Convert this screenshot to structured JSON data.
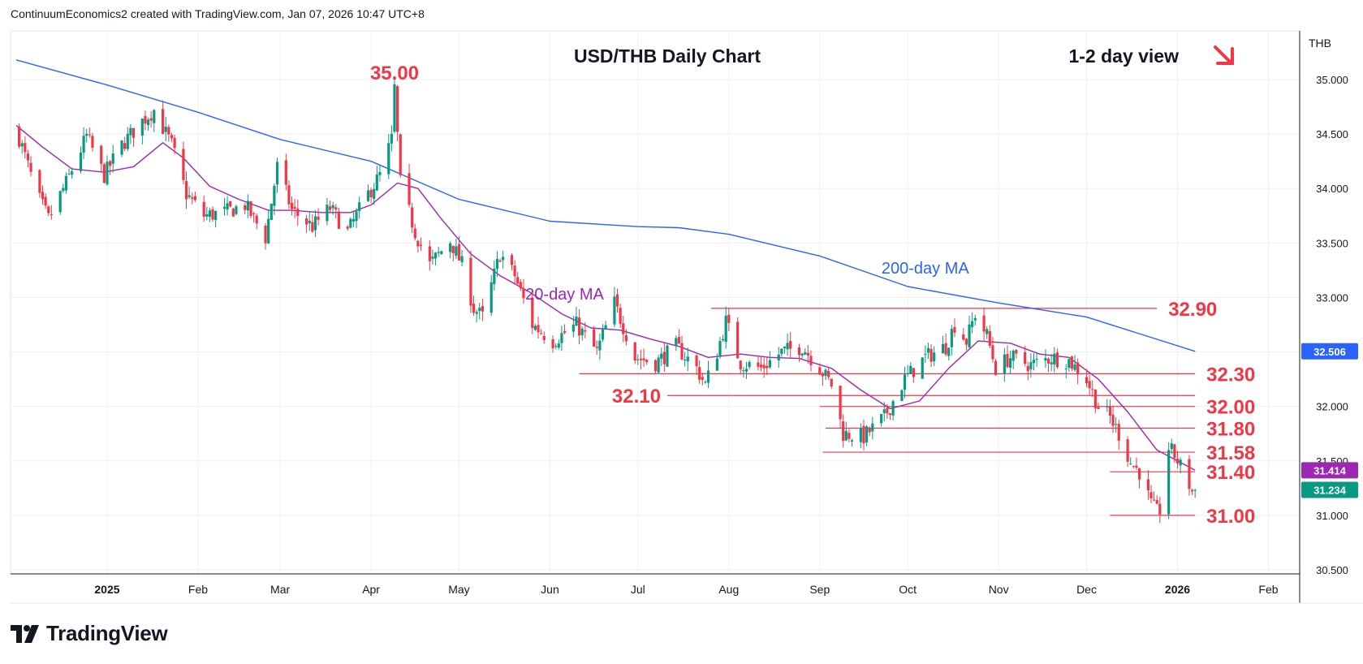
{
  "header": {
    "credit": "ContinuumEconomics2 created with TradingView.com, Jan 07, 2026 10:47 UTC+8"
  },
  "footer": {
    "brand": "TradingView"
  },
  "colors": {
    "up": "#089981",
    "down": "#f23645",
    "ma200": "#2962ff",
    "ma20": "#9c27b0",
    "level_line": "#f23645",
    "level_text": "#f23645",
    "price_badge": "#089981",
    "ma20_badge": "#9c27b0",
    "ma200_badge": "#2962ff",
    "grid": "#eef0f3"
  },
  "chart_data": {
    "type": "candlestick",
    "title": "USD/THB Daily Chart",
    "view_label": "1-2 day view",
    "view_arrow": "down-right-arrow",
    "currency": "THB",
    "ylim": [
      30.5,
      35.5
    ],
    "y_ticks": [
      "35.000",
      "34.500",
      "34.000",
      "33.500",
      "33.000",
      "32.500",
      "32.000",
      "31.500",
      "31.000",
      "30.500"
    ],
    "y_tick_values": [
      35.0,
      34.5,
      34.0,
      33.5,
      33.0,
      32.5,
      32.0,
      31.5,
      31.0,
      30.5
    ],
    "x_range": [
      "2024-12-01",
      "2026-02-10"
    ],
    "x_ticks": [
      {
        "label": "2025",
        "date": "2025-01-01",
        "bold": true
      },
      {
        "label": "Feb",
        "date": "2025-02-01"
      },
      {
        "label": "Mar",
        "date": "2025-03-01"
      },
      {
        "label": "Apr",
        "date": "2025-04-01"
      },
      {
        "label": "May",
        "date": "2025-05-01"
      },
      {
        "label": "Jun",
        "date": "2025-06-01"
      },
      {
        "label": "Jul",
        "date": "2025-07-01"
      },
      {
        "label": "Aug",
        "date": "2025-08-01"
      },
      {
        "label": "Sep",
        "date": "2025-09-01"
      },
      {
        "label": "Oct",
        "date": "2025-10-01"
      },
      {
        "label": "Nov",
        "date": "2025-11-01"
      },
      {
        "label": "Dec",
        "date": "2025-12-01"
      },
      {
        "label": "2026",
        "date": "2026-01-01",
        "bold": true
      },
      {
        "label": "Feb",
        "date": "2026-02-01"
      }
    ],
    "price_path": [
      [
        "2024-12-01",
        34.55
      ],
      [
        "2024-12-08",
        33.95
      ],
      [
        "2024-12-12",
        33.72
      ],
      [
        "2024-12-18",
        34.05
      ],
      [
        "2024-12-25",
        34.48
      ],
      [
        "2024-12-31",
        34.12
      ],
      [
        "2025-01-06",
        34.4
      ],
      [
        "2025-01-13",
        34.62
      ],
      [
        "2025-01-17",
        34.72
      ],
      [
        "2025-01-23",
        34.4
      ],
      [
        "2025-01-28",
        33.95
      ],
      [
        "2025-02-03",
        33.75
      ],
      [
        "2025-02-10",
        33.78
      ],
      [
        "2025-02-17",
        33.85
      ],
      [
        "2025-02-24",
        33.55
      ],
      [
        "2025-02-28",
        34.2
      ],
      [
        "2025-03-05",
        33.8
      ],
      [
        "2025-03-12",
        33.65
      ],
      [
        "2025-03-18",
        33.82
      ],
      [
        "2025-03-24",
        33.6
      ],
      [
        "2025-03-31",
        33.95
      ],
      [
        "2025-04-04",
        34.12
      ],
      [
        "2025-04-08",
        34.45
      ],
      [
        "2025-04-09",
        34.92
      ],
      [
        "2025-04-11",
        34.05
      ],
      [
        "2025-04-16",
        33.6
      ],
      [
        "2025-04-21",
        33.3
      ],
      [
        "2025-04-28",
        33.52
      ],
      [
        "2025-05-02",
        33.3
      ],
      [
        "2025-05-06",
        32.9
      ],
      [
        "2025-05-09",
        32.82
      ],
      [
        "2025-05-15",
        33.4
      ],
      [
        "2025-05-20",
        33.2
      ],
      [
        "2025-05-26",
        32.75
      ],
      [
        "2025-06-02",
        32.6
      ],
      [
        "2025-06-10",
        32.75
      ],
      [
        "2025-06-17",
        32.5
      ],
      [
        "2025-06-23",
        32.95
      ],
      [
        "2025-06-30",
        32.45
      ],
      [
        "2025-07-07",
        32.4
      ],
      [
        "2025-07-14",
        32.55
      ],
      [
        "2025-07-21",
        32.35
      ],
      [
        "2025-07-24",
        32.2
      ],
      [
        "2025-07-28",
        32.5
      ],
      [
        "2025-07-31",
        32.78
      ],
      [
        "2025-08-05",
        32.4
      ],
      [
        "2025-08-12",
        32.35
      ],
      [
        "2025-08-19",
        32.5
      ],
      [
        "2025-08-26",
        32.55
      ],
      [
        "2025-09-01",
        32.35
      ],
      [
        "2025-09-05",
        32.2
      ],
      [
        "2025-09-09",
        31.75
      ],
      [
        "2025-09-16",
        31.72
      ],
      [
        "2025-09-23",
        31.9
      ],
      [
        "2025-09-30",
        32.25
      ],
      [
        "2025-10-07",
        32.45
      ],
      [
        "2025-10-14",
        32.55
      ],
      [
        "2025-10-17",
        32.75
      ],
      [
        "2025-10-21",
        32.6
      ],
      [
        "2025-10-24",
        32.85
      ],
      [
        "2025-10-28",
        32.65
      ],
      [
        "2025-10-31",
        32.35
      ],
      [
        "2025-11-05",
        32.45
      ],
      [
        "2025-11-12",
        32.38
      ],
      [
        "2025-11-19",
        32.45
      ],
      [
        "2025-11-25",
        32.42
      ],
      [
        "2025-12-01",
        32.25
      ],
      [
        "2025-12-05",
        32.0
      ],
      [
        "2025-12-09",
        31.9
      ],
      [
        "2025-12-12",
        31.75
      ],
      [
        "2025-12-16",
        31.48
      ],
      [
        "2025-12-19",
        31.4
      ],
      [
        "2025-12-23",
        31.1
      ],
      [
        "2025-12-25",
        31.03
      ],
      [
        "2025-12-26",
        31.05
      ],
      [
        "2025-12-29",
        31.62
      ],
      [
        "2025-12-31",
        31.55
      ],
      [
        "2026-01-02",
        31.45
      ],
      [
        "2026-01-05",
        31.28
      ],
      [
        "2026-01-06",
        31.22
      ],
      [
        "2026-01-07",
        31.234
      ]
    ],
    "ma20": [
      [
        "2024-12-01",
        34.58
      ],
      [
        "2024-12-10",
        34.38
      ],
      [
        "2024-12-20",
        34.18
      ],
      [
        "2024-12-31",
        34.15
      ],
      [
        "2025-01-10",
        34.2
      ],
      [
        "2025-01-20",
        34.42
      ],
      [
        "2025-01-27",
        34.28
      ],
      [
        "2025-02-05",
        34.02
      ],
      [
        "2025-02-15",
        33.9
      ],
      [
        "2025-02-25",
        33.8
      ],
      [
        "2025-03-05",
        33.8
      ],
      [
        "2025-03-15",
        33.78
      ],
      [
        "2025-03-25",
        33.78
      ],
      [
        "2025-04-01",
        33.85
      ],
      [
        "2025-04-10",
        34.05
      ],
      [
        "2025-04-17",
        34.0
      ],
      [
        "2025-04-25",
        33.72
      ],
      [
        "2025-05-05",
        33.4
      ],
      [
        "2025-05-15",
        33.2
      ],
      [
        "2025-05-25",
        33.05
      ],
      [
        "2025-06-05",
        32.85
      ],
      [
        "2025-06-15",
        32.72
      ],
      [
        "2025-06-25",
        32.7
      ],
      [
        "2025-07-05",
        32.62
      ],
      [
        "2025-07-15",
        32.55
      ],
      [
        "2025-07-25",
        32.45
      ],
      [
        "2025-08-05",
        32.48
      ],
      [
        "2025-08-15",
        32.45
      ],
      [
        "2025-08-25",
        32.44
      ],
      [
        "2025-09-05",
        32.35
      ],
      [
        "2025-09-15",
        32.15
      ],
      [
        "2025-09-25",
        31.98
      ],
      [
        "2025-10-05",
        32.05
      ],
      [
        "2025-10-15",
        32.35
      ],
      [
        "2025-10-25",
        32.6
      ],
      [
        "2025-11-05",
        32.58
      ],
      [
        "2025-11-15",
        32.48
      ],
      [
        "2025-11-25",
        32.45
      ],
      [
        "2025-12-05",
        32.25
      ],
      [
        "2025-12-15",
        31.95
      ],
      [
        "2025-12-25",
        31.6
      ],
      [
        "2026-01-01",
        31.5
      ],
      [
        "2026-01-07",
        31.414
      ]
    ],
    "ma200": [
      [
        "2024-12-01",
        35.18
      ],
      [
        "2025-01-01",
        34.95
      ],
      [
        "2025-02-01",
        34.7
      ],
      [
        "2025-03-01",
        34.45
      ],
      [
        "2025-04-01",
        34.25
      ],
      [
        "2025-05-01",
        33.9
      ],
      [
        "2025-06-01",
        33.7
      ],
      [
        "2025-07-01",
        33.65
      ],
      [
        "2025-07-15",
        33.64
      ],
      [
        "2025-08-01",
        33.58
      ],
      [
        "2025-09-01",
        33.38
      ],
      [
        "2025-10-01",
        33.1
      ],
      [
        "2025-11-01",
        32.95
      ],
      [
        "2025-12-01",
        32.82
      ],
      [
        "2026-01-07",
        32.506
      ]
    ],
    "annotations": [
      {
        "label": "35.00",
        "date": "2025-04-09",
        "value": 35.0
      },
      {
        "label": "20-day MA",
        "date": "2025-06-06",
        "value": 32.98
      },
      {
        "label": "200-day MA",
        "date": "2025-10-07",
        "value": 33.22
      }
    ],
    "levels": [
      {
        "label": "32.90",
        "value": 32.9,
        "from": "2025-07-26",
        "to": "2025-12-25",
        "label_side": "right"
      },
      {
        "label": "32.30",
        "value": 32.3,
        "from": "2025-06-11",
        "to": "2026-01-07",
        "label_side": "right"
      },
      {
        "label": "32.10",
        "value": 32.1,
        "from": "2025-07-11",
        "to": "2026-01-07",
        "label_side": "left"
      },
      {
        "label": "32.00",
        "value": 32.0,
        "from": "2025-09-01",
        "to": "2026-01-07",
        "label_side": "right"
      },
      {
        "label": "31.80",
        "value": 31.8,
        "from": "2025-09-03",
        "to": "2026-01-07",
        "label_side": "right"
      },
      {
        "label": "31.58",
        "value": 31.58,
        "from": "2025-09-02",
        "to": "2026-01-07",
        "label_side": "right"
      },
      {
        "label": "31.40",
        "value": 31.4,
        "from": "2025-12-09",
        "to": "2026-01-07",
        "label_side": "right"
      },
      {
        "label": "31.00",
        "value": 31.0,
        "from": "2025-12-09",
        "to": "2026-01-07",
        "label_side": "right"
      }
    ],
    "price_badges": [
      {
        "label": "32.506",
        "value": 32.506,
        "kind": "ma200"
      },
      {
        "label": "31.414",
        "value": 31.414,
        "kind": "ma20"
      },
      {
        "label": "31.234",
        "value": 31.234,
        "kind": "price"
      }
    ],
    "grid": true
  }
}
